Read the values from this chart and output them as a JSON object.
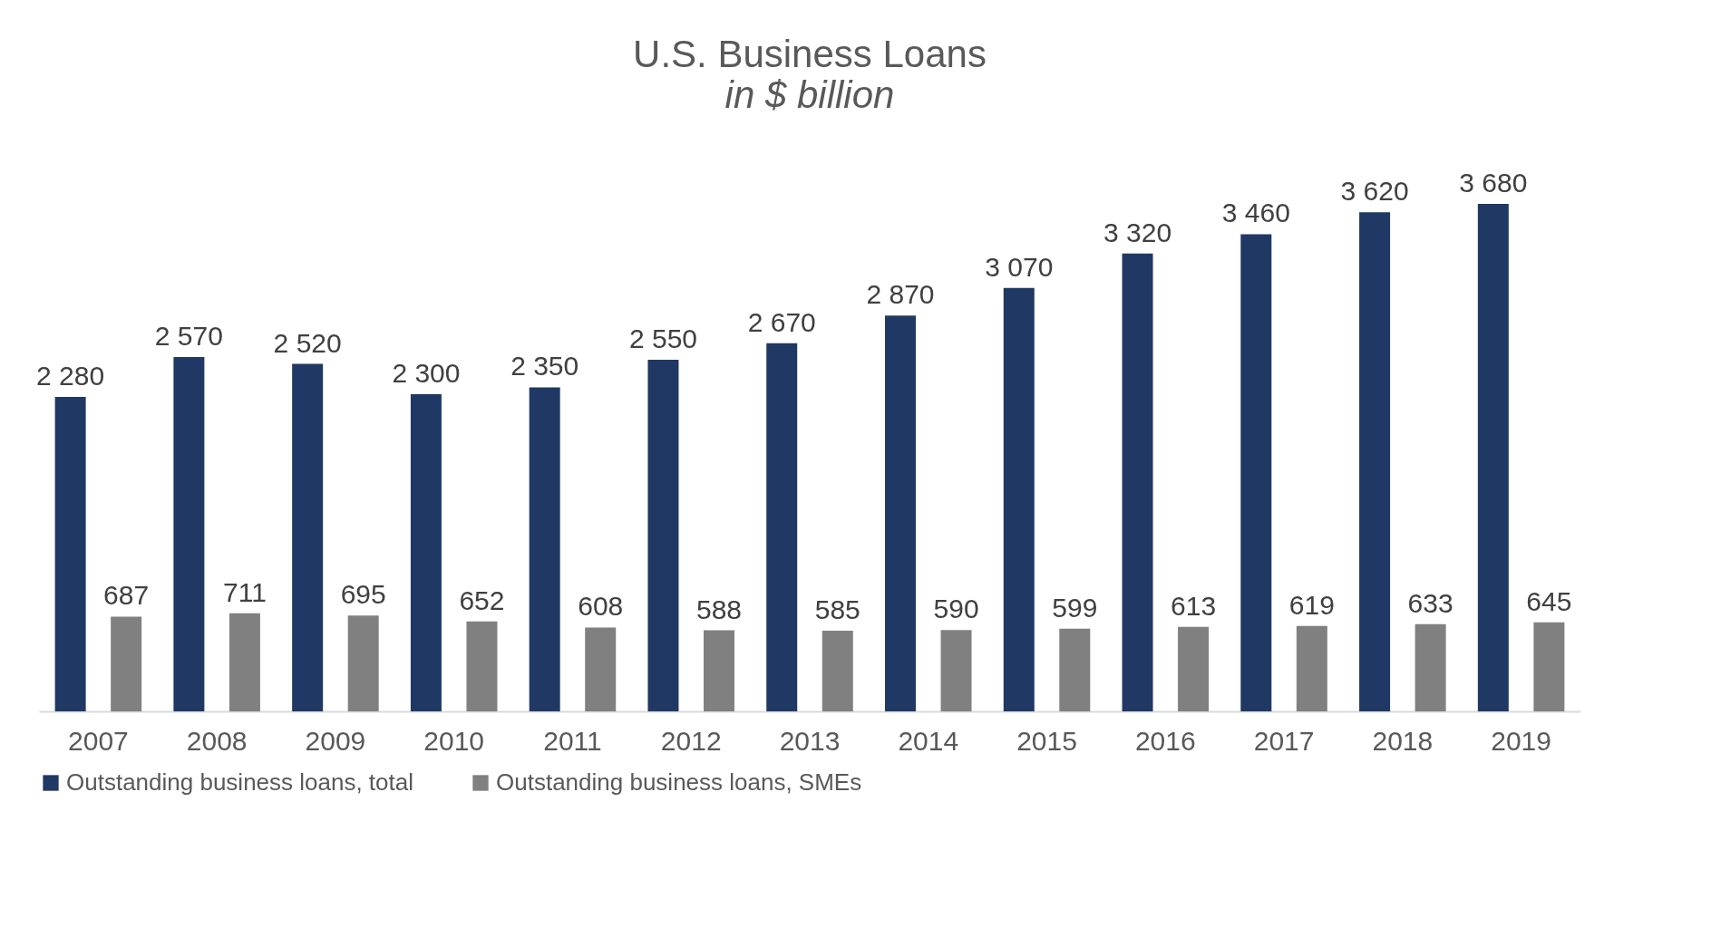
{
  "chart_data": {
    "type": "bar",
    "title": "U.S. Business Loans",
    "subtitle": "in $ billion",
    "categories": [
      "2007",
      "2008",
      "2009",
      "2010",
      "2011",
      "2012",
      "2013",
      "2014",
      "2015",
      "2016",
      "2017",
      "2018",
      "2019"
    ],
    "series": [
      {
        "name": "Outstanding business loans, total",
        "color": "#203864",
        "values": [
          2280,
          2570,
          2520,
          2300,
          2350,
          2550,
          2670,
          2870,
          3070,
          3320,
          3460,
          3620,
          3680
        ],
        "value_labels": [
          "2 280",
          "2 570",
          "2 520",
          "2 300",
          "2 350",
          "2 550",
          "2 670",
          "2 870",
          "3 070",
          "3 320",
          "3 460",
          "3 620",
          "3 680"
        ]
      },
      {
        "name": "Outstanding business loans, SMEs",
        "color": "#808080",
        "values": [
          687,
          711,
          695,
          652,
          608,
          588,
          585,
          590,
          599,
          613,
          619,
          633,
          645
        ],
        "value_labels": [
          "687",
          "711",
          "695",
          "652",
          "608",
          "588",
          "585",
          "590",
          "599",
          "613",
          "619",
          "633",
          "645"
        ]
      }
    ],
    "legend": "bottom",
    "grid": false
  }
}
